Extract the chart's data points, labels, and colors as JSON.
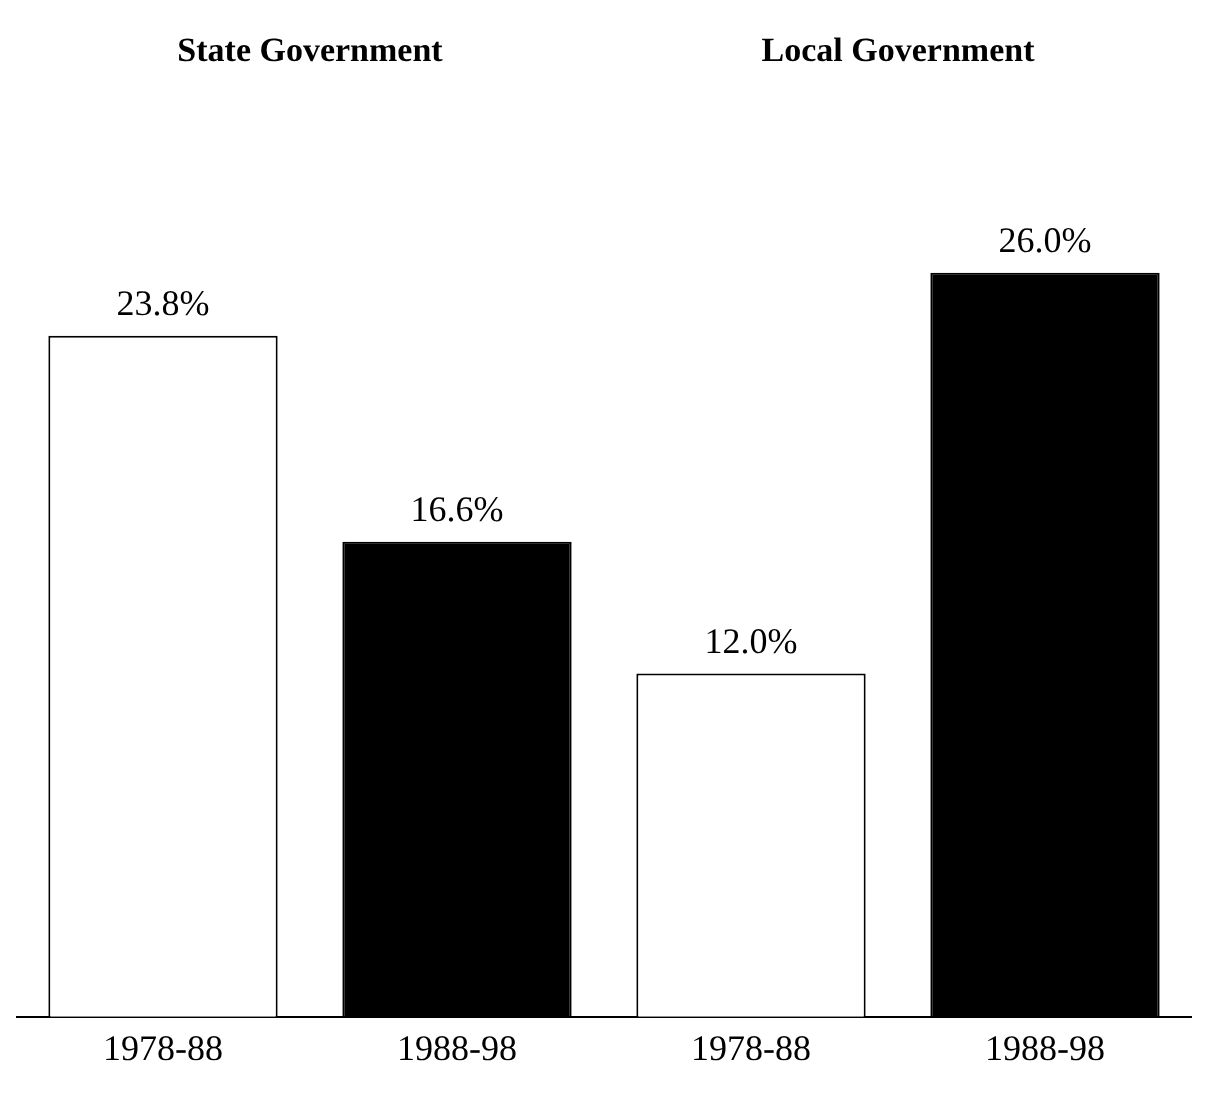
{
  "chart_data": [
    {
      "type": "bar",
      "title": "State Government",
      "categories": [
        "1978-88",
        "1988-98"
      ],
      "values": [
        23.8,
        16.6
      ],
      "colors": [
        "#ffffff",
        "#000000"
      ],
      "value_labels": [
        "23.8%",
        "16.6%"
      ],
      "tick_labels": "x",
      "grid": false,
      "legend": false
    },
    {
      "type": "bar",
      "title": "Local Government",
      "categories": [
        "1978-88",
        "1988-98"
      ],
      "values": [
        12.0,
        26.0
      ],
      "colors": [
        "#ffffff",
        "#000000"
      ],
      "value_labels": [
        "12.0%",
        "26.0%"
      ],
      "tick_labels": "x",
      "grid": false,
      "legend": false
    }
  ]
}
